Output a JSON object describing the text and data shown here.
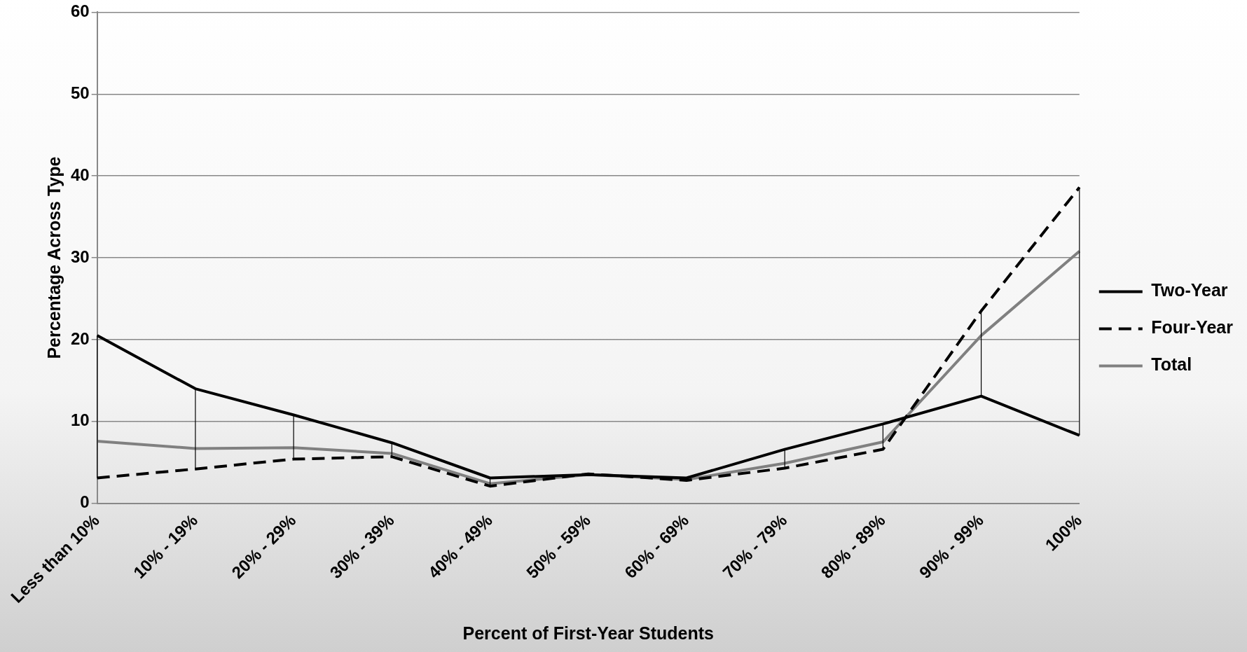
{
  "chart_data": {
    "type": "line",
    "xlabel": "Percent of First-Year Students",
    "ylabel": "Percentage Across Type",
    "categories": [
      "Less than 10%",
      "10% - 19%",
      "20% - 29%",
      "30% - 39%",
      "40% - 49%",
      "50% - 59%",
      "60% - 69%",
      "70% - 79%",
      "80% - 89%",
      "90% - 99%",
      "100%"
    ],
    "series": [
      {
        "name": "Two-Year",
        "color": "#000000",
        "line_style": "solid",
        "values": [
          20.5,
          14,
          10.8,
          7.4,
          3.1,
          3.5,
          3.1,
          6.6,
          9.7,
          13.1,
          8.3
        ],
        "errors": [
          [
            3.1,
            20.5
          ],
          [
            4.2,
            14
          ],
          [
            5.4,
            10.8
          ],
          [
            5.7,
            7.4
          ],
          [
            2.1,
            3.1
          ],
          null,
          [
            2.8,
            3.1
          ],
          [
            4.3,
            6.6
          ],
          [
            6.6,
            9.7
          ],
          [
            13.1,
            23.5
          ],
          [
            8.3,
            38.6
          ]
        ]
      },
      {
        "name": "Four-Year",
        "color": "#000000",
        "line_style": "dashed",
        "values": [
          3.1,
          4.2,
          5.4,
          5.7,
          2.1,
          3.6,
          2.8,
          4.3,
          6.6,
          23.5,
          38.6
        ]
      },
      {
        "name": "Total",
        "color": "#808080",
        "line_style": "solid",
        "values": [
          7.6,
          6.7,
          6.8,
          6.1,
          2.4,
          3.5,
          2.9,
          4.9,
          7.5,
          20.5,
          30.8
        ]
      }
    ],
    "ylim": [
      0,
      60
    ],
    "yticks": [
      0,
      10,
      20,
      30,
      40,
      50,
      60
    ],
    "grid": "y",
    "legend": "right",
    "marker": "none"
  }
}
